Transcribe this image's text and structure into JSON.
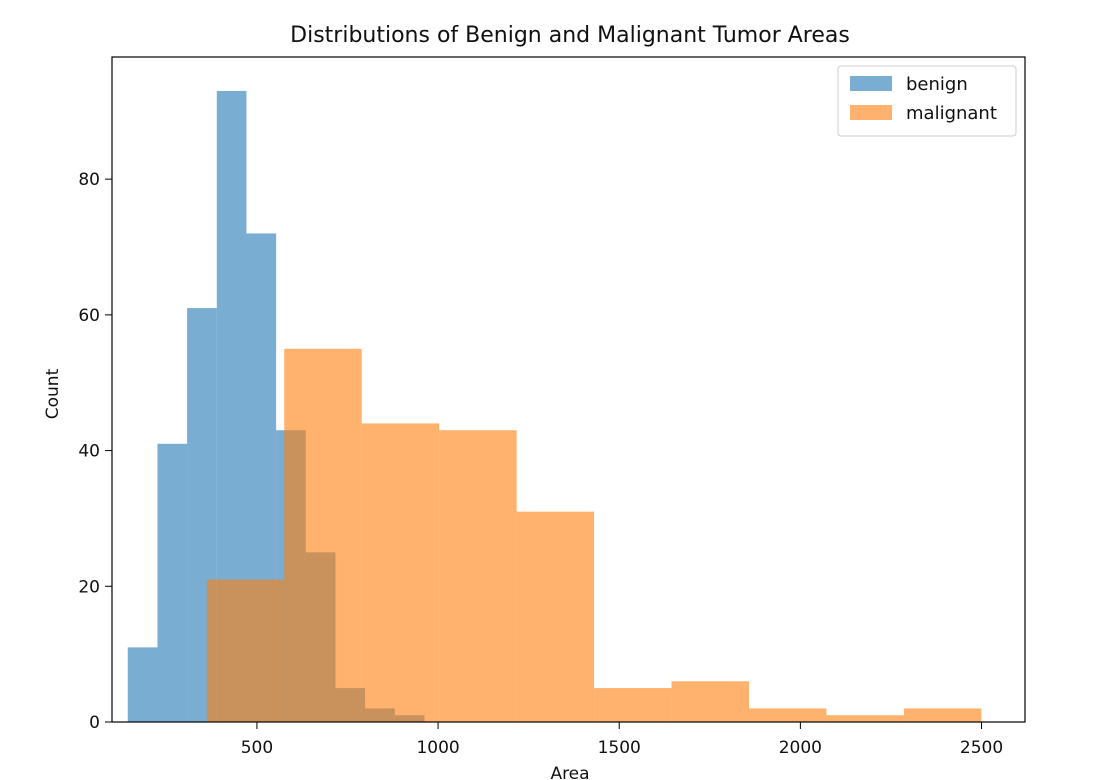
{
  "chart_data": {
    "type": "bar",
    "subtype": "histogram",
    "title": "Distributions of Benign and Malignant Tumor Areas",
    "xlabel": "Area",
    "ylabel": "Count",
    "xlim": [
      100,
      2620
    ],
    "ylim": [
      0,
      98
    ],
    "xticks": [
      500,
      1000,
      1500,
      2000,
      2500
    ],
    "yticks": [
      0,
      20,
      40,
      60,
      80
    ],
    "grid": false,
    "legend_position": "top-right",
    "opacity": 0.6,
    "series": [
      {
        "name": "benign",
        "color": "#1f77b4",
        "bin_edges": [
          143.5,
          225.4,
          307.3,
          389.2,
          471.1,
          553.0,
          634.9,
          716.8,
          798.7,
          880.6,
          962.5
        ],
        "counts": [
          11,
          41,
          61,
          93,
          72,
          43,
          25,
          5,
          2,
          1
        ]
      },
      {
        "name": "malignant",
        "color": "#ff7f0e",
        "bin_edges": [
          361.6,
          575.4,
          789.2,
          1003.0,
          1216.8,
          1430.6,
          1644.4,
          1858.2,
          2072.0,
          2285.8,
          2499.6
        ],
        "counts": [
          21,
          55,
          44,
          43,
          31,
          5,
          6,
          2,
          1,
          2
        ]
      }
    ]
  }
}
